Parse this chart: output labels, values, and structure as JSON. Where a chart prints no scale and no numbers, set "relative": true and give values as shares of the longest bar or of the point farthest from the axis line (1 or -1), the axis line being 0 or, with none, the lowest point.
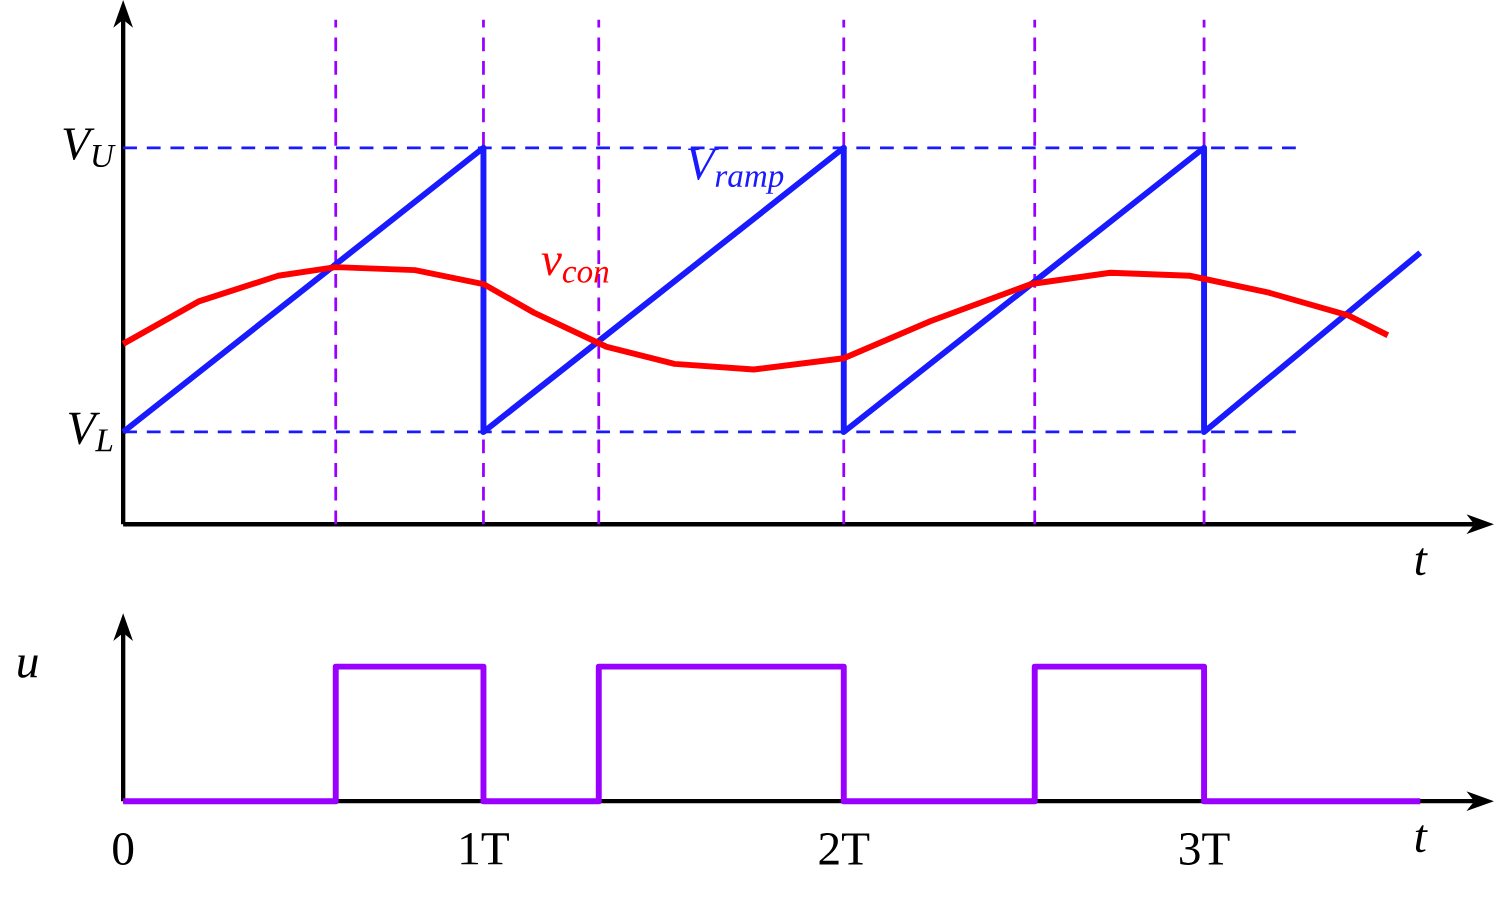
{
  "chart_data": [
    {
      "type": "line",
      "xlabel": "t",
      "xlim": [
        0,
        3.75
      ],
      "relative": true,
      "tick_labels": false,
      "series": [
        {
          "name": "V$_{ramp}$",
          "color": "#1a1aff",
          "x": [
            0,
            1,
            1,
            2,
            2,
            3,
            3,
            3.6
          ],
          "values": [
            0.245,
            1,
            0.245,
            1,
            0.245,
            1,
            0.245,
            0.721
          ]
        },
        {
          "name": "v$_{con}$",
          "color": "#ff0000",
          "x": [
            0,
            0.21,
            0.43,
            0.59,
            0.81,
            1,
            1.14,
            1.34,
            1.53,
            1.75,
            2,
            2.24,
            2.52,
            2.74,
            2.96,
            3.18,
            3.4,
            3.51
          ],
          "values": [
            0.479,
            0.592,
            0.66,
            0.683,
            0.675,
            0.638,
            0.562,
            0.472,
            0.426,
            0.411,
            0.441,
            0.539,
            0.638,
            0.668,
            0.66,
            0.615,
            0.555,
            0.502
          ]
        }
      ],
      "ref_lines": [
        {
          "axis": "y",
          "value": 1,
          "label": "V$_{U}$",
          "color": "#1a1aff",
          "line_style": "dashed"
        },
        {
          "axis": "y",
          "value": 0.245,
          "label": "V$_{L}$",
          "color": "#1a1aff",
          "line_style": "dashed"
        },
        {
          "axis": "x",
          "value": 0.59,
          "color": "#9900ff",
          "line_style": "dashed"
        },
        {
          "axis": "x",
          "value": 1,
          "color": "#9900ff",
          "line_style": "dashed"
        },
        {
          "axis": "x",
          "value": 1.32,
          "color": "#9900ff",
          "line_style": "dashed"
        },
        {
          "axis": "x",
          "value": 2,
          "color": "#9900ff",
          "line_style": "dashed"
        },
        {
          "axis": "x",
          "value": 2.53,
          "color": "#9900ff",
          "line_style": "dashed"
        },
        {
          "axis": "x",
          "value": 3,
          "color": "#9900ff",
          "line_style": "dashed"
        }
      ]
    },
    {
      "type": "step",
      "xlabel": "t",
      "ylabel": "u",
      "xlim": [
        0,
        3.75
      ],
      "relative": true,
      "tick_labels": "x",
      "xticks": [
        0,
        {
          "value": 1,
          "label": "1T"
        },
        {
          "value": 2,
          "label": "2T"
        },
        {
          "value": 3,
          "label": "3T"
        }
      ],
      "series": [
        {
          "color": "#9900ff",
          "x": [
            0,
            0.59,
            1,
            1.32,
            2,
            2.53,
            3,
            3.6
          ],
          "values": [
            0,
            1,
            0,
            1,
            0,
            1,
            0,
            0
          ]
        }
      ]
    }
  ]
}
